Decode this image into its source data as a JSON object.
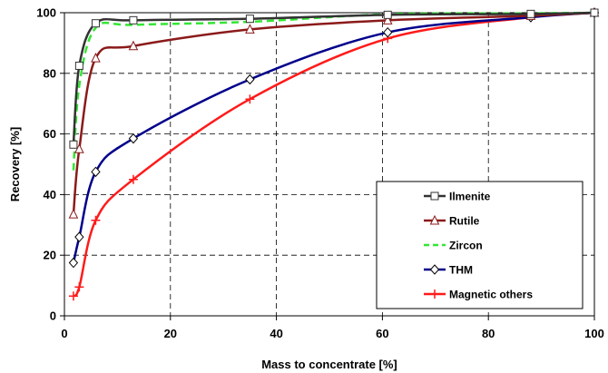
{
  "chart_data": {
    "type": "line",
    "title": "",
    "xlabel": "Mass to concentrate [%]",
    "ylabel": "Recovery [%]",
    "xlim": [
      0,
      100
    ],
    "ylim": [
      0,
      100
    ],
    "xticks": [
      0,
      20,
      40,
      60,
      80,
      100
    ],
    "yticks": [
      0,
      20,
      40,
      60,
      80,
      100
    ],
    "grid": "dashed",
    "legend_position": "bottom-right",
    "series": [
      {
        "name": "Ilmenite",
        "color": "#333333",
        "marker": "square",
        "dashed": false,
        "points": [
          [
            1.7,
            56.5
          ],
          [
            2.8,
            82.5
          ],
          [
            5.9,
            96.5
          ],
          [
            13,
            97.5
          ],
          [
            35,
            98
          ],
          [
            61,
            99.3
          ],
          [
            88,
            99.6
          ],
          [
            100,
            100
          ]
        ]
      },
      {
        "name": "Rutile",
        "color": "#8b1a1a",
        "marker": "triangle",
        "dashed": false,
        "points": [
          [
            1.7,
            33.5
          ],
          [
            2.8,
            55
          ],
          [
            5.9,
            85
          ],
          [
            13,
            89
          ],
          [
            35,
            94.5
          ],
          [
            61,
            97.5
          ],
          [
            88,
            99
          ],
          [
            100,
            100
          ]
        ]
      },
      {
        "name": "Zircon",
        "color": "#33e633",
        "marker": "none",
        "dashed": true,
        "points": [
          [
            1.7,
            48
          ],
          [
            2.8,
            76
          ],
          [
            5.9,
            95
          ],
          [
            13,
            96
          ],
          [
            35,
            97
          ],
          [
            61,
            99.5
          ],
          [
            88,
            99.8
          ],
          [
            100,
            100
          ]
        ]
      },
      {
        "name": "THM",
        "color": "#00008b",
        "marker": "diamond",
        "dashed": false,
        "points": [
          [
            1.7,
            17.5
          ],
          [
            2.8,
            26
          ],
          [
            5.9,
            47.5
          ],
          [
            13,
            58.5
          ],
          [
            35,
            78
          ],
          [
            61,
            93.5
          ],
          [
            88,
            98.5
          ],
          [
            100,
            100
          ]
        ]
      },
      {
        "name": "Magnetic others",
        "color": "#ff1a1a",
        "marker": "plus",
        "dashed": false,
        "points": [
          [
            1.7,
            6.5
          ],
          [
            2.8,
            9.5
          ],
          [
            5.9,
            31.5
          ],
          [
            13,
            45
          ],
          [
            35,
            71.5
          ],
          [
            61,
            91.5
          ],
          [
            88,
            98.5
          ],
          [
            100,
            100
          ]
        ]
      }
    ]
  }
}
